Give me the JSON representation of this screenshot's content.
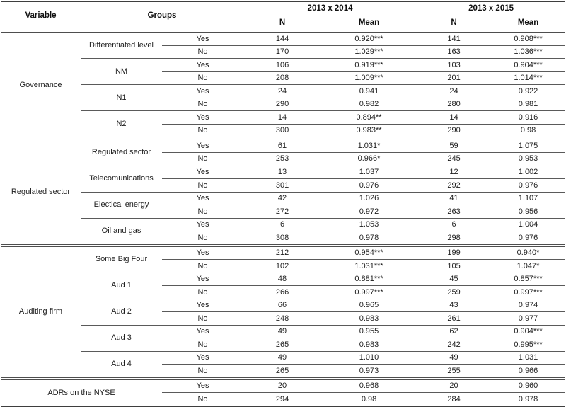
{
  "table": {
    "headers": {
      "variable": "Variable",
      "groups": "Groups",
      "period1": "2013 x 2014",
      "period2": "2013 x 2015",
      "n": "N",
      "mean": "Mean"
    },
    "colors": {
      "rule_thin": "#5a5a5a",
      "rule_heavy": "#3e3e3e",
      "text": "#1d1d1d",
      "background": "#ffffff"
    },
    "sections": [
      {
        "variable": "Governance",
        "groups": [
          {
            "label": "Differentiated level",
            "rows": [
              {
                "option": "Yes",
                "p1_n": "144",
                "p1_mean": "0.920***",
                "p2_n": "141",
                "p2_mean": "0.908***"
              },
              {
                "option": "No",
                "p1_n": "170",
                "p1_mean": "1.029***",
                "p2_n": "163",
                "p2_mean": "1.036***"
              }
            ]
          },
          {
            "label": "NM",
            "rows": [
              {
                "option": "Yes",
                "p1_n": "106",
                "p1_mean": "0.919***",
                "p2_n": "103",
                "p2_mean": "0.904***"
              },
              {
                "option": "No",
                "p1_n": "208",
                "p1_mean": "1.009***",
                "p2_n": "201",
                "p2_mean": "1.014***"
              }
            ]
          },
          {
            "label": "N1",
            "rows": [
              {
                "option": "Yes",
                "p1_n": "24",
                "p1_mean": "0.941",
                "p2_n": "24",
                "p2_mean": "0.922"
              },
              {
                "option": "No",
                "p1_n": "290",
                "p1_mean": "0.982",
                "p2_n": "280",
                "p2_mean": "0.981"
              }
            ]
          },
          {
            "label": "N2",
            "rows": [
              {
                "option": "Yes",
                "p1_n": "14",
                "p1_mean": "0.894**",
                "p2_n": "14",
                "p2_mean": "0.916"
              },
              {
                "option": "No",
                "p1_n": "300",
                "p1_mean": "0.983**",
                "p2_n": "290",
                "p2_mean": "0.98"
              }
            ]
          }
        ]
      },
      {
        "variable": "Regulated sector",
        "groups": [
          {
            "label": "Regulated sector",
            "rows": [
              {
                "option": "Yes",
                "p1_n": "61",
                "p1_mean": "1.031*",
                "p2_n": "59",
                "p2_mean": "1.075"
              },
              {
                "option": "No",
                "p1_n": "253",
                "p1_mean": "0.966*",
                "p2_n": "245",
                "p2_mean": "0.953"
              }
            ]
          },
          {
            "label": "Telecomunications",
            "rows": [
              {
                "option": "Yes",
                "p1_n": "13",
                "p1_mean": "1.037",
                "p2_n": "12",
                "p2_mean": "1.002"
              },
              {
                "option": "No",
                "p1_n": "301",
                "p1_mean": "0.976",
                "p2_n": "292",
                "p2_mean": "0.976"
              }
            ]
          },
          {
            "label": "Electical energy",
            "rows": [
              {
                "option": "Yes",
                "p1_n": "42",
                "p1_mean": "1.026",
                "p2_n": "41",
                "p2_mean": "1.107"
              },
              {
                "option": "No",
                "p1_n": "272",
                "p1_mean": "0.972",
                "p2_n": "263",
                "p2_mean": "0.956"
              }
            ]
          },
          {
            "label": "Oil and gas",
            "rows": [
              {
                "option": "Yes",
                "p1_n": "6",
                "p1_mean": "1.053",
                "p2_n": "6",
                "p2_mean": "1.004"
              },
              {
                "option": "No",
                "p1_n": "308",
                "p1_mean": "0.978",
                "p2_n": "298",
                "p2_mean": "0.976"
              }
            ]
          }
        ]
      },
      {
        "variable": "Auditing firm",
        "groups": [
          {
            "label": "Some Big Four",
            "rows": [
              {
                "option": "Yes",
                "p1_n": "212",
                "p1_mean": "0.954***",
                "p2_n": "199",
                "p2_mean": "0.940*"
              },
              {
                "option": "No",
                "p1_n": "102",
                "p1_mean": "1.031***",
                "p2_n": "105",
                "p2_mean": "1.047*"
              }
            ]
          },
          {
            "label": "Aud 1",
            "rows": [
              {
                "option": "Yes",
                "p1_n": "48",
                "p1_mean": "0.881***",
                "p2_n": "45",
                "p2_mean": "0.857***"
              },
              {
                "option": "No",
                "p1_n": "266",
                "p1_mean": "0.997***",
                "p2_n": "259",
                "p2_mean": "0.997***"
              }
            ]
          },
          {
            "label": "Aud 2",
            "rows": [
              {
                "option": "Yes",
                "p1_n": "66",
                "p1_mean": "0.965",
                "p2_n": "43",
                "p2_mean": "0.974"
              },
              {
                "option": "No",
                "p1_n": "248",
                "p1_mean": "0.983",
                "p2_n": "261",
                "p2_mean": "0.977"
              }
            ]
          },
          {
            "label": "Aud 3",
            "rows": [
              {
                "option": "Yes",
                "p1_n": "49",
                "p1_mean": "0.955",
                "p2_n": "62",
                "p2_mean": "0.904***"
              },
              {
                "option": "No",
                "p1_n": "265",
                "p1_mean": "0.983",
                "p2_n": "242",
                "p2_mean": "0.995***"
              }
            ]
          },
          {
            "label": "Aud 4",
            "rows": [
              {
                "option": "Yes",
                "p1_n": "49",
                "p1_mean": "1.010",
                "p2_n": "49",
                "p2_mean": "1,031"
              },
              {
                "option": "No",
                "p1_n": "265",
                "p1_mean": "0.973",
                "p2_n": "255",
                "p2_mean": "0,966"
              }
            ]
          }
        ]
      },
      {
        "variable": "ADRs on the NYSE",
        "span_groups": true,
        "groups": [
          {
            "label": "",
            "rows": [
              {
                "option": "Yes",
                "p1_n": "20",
                "p1_mean": "0.968",
                "p2_n": "20",
                "p2_mean": "0.960"
              },
              {
                "option": "No",
                "p1_n": "294",
                "p1_mean": "0.98",
                "p2_n": "284",
                "p2_mean": "0.978"
              }
            ]
          }
        ]
      }
    ]
  }
}
